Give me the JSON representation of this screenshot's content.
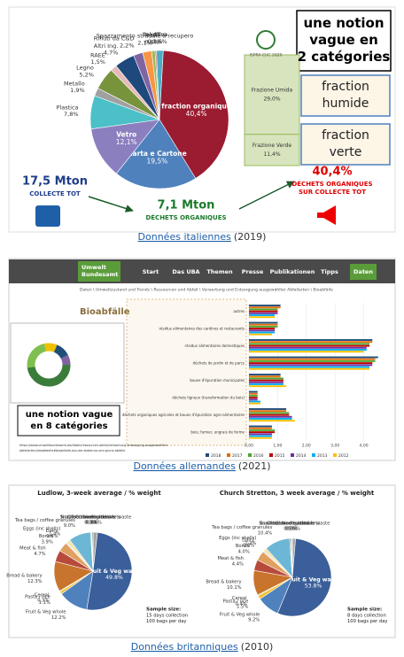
{
  "sections": [
    {
      "caption": {
        "link": "Données italiennes",
        "year": "(2019)"
      },
      "figure": {
        "type": "pie",
        "labels": [
          "Rifiuti da C&D",
          "Spazzamento stradale a recupero",
          "Tessili",
          "Selettiva",
          "Altro",
          "fraction organique",
          "Carta e Cartone",
          "Vetro",
          "Plastica",
          "Metallo",
          "Legno",
          "RAEE",
          "Altri Ing."
        ],
        "values": [
          2.2,
          2.1,
          0.8,
          0.3,
          1.6,
          40.4,
          19.5,
          12.1,
          7.8,
          1.9,
          5.2,
          1.5,
          4.7
        ],
        "value_labels": [
          "2,2%",
          "2,1%",
          "0,8%",
          "0,3%",
          "1,6%",
          "40,4%",
          "19,5%",
          "12,1%",
          "7,8%",
          "1,9%",
          "5,2%",
          "1,5%",
          "4,7%"
        ],
        "colors": [
          "#8064a2",
          "#f79646",
          "#9bbb59",
          "#c0504d",
          "#4bacc6",
          "#9b1b30",
          "#4f81bd",
          "#8c7fc0",
          "#4bc0c8",
          "#a0a0a0",
          "#77933c",
          "#e6b9b8",
          "#1f497d"
        ],
        "breakdown": [
          {
            "label": "Frazione Umida",
            "value": 29.0,
            "value_label": "29,0%"
          },
          {
            "label": "Frazione Verde",
            "value": 11.4,
            "value_label": "11,4%"
          }
        ],
        "logo": "ISPRA CUC 2020",
        "note": "une notion vague en 2 catégories",
        "tags": [
          "fraction humide",
          "fraction verte"
        ],
        "stats": [
          {
            "value": "17,5 Mton",
            "label": [
              "COLLECTE TOT"
            ]
          },
          {
            "value": "7,1 Mton",
            "label": [
              "DÉCHETS ORGANIQUES"
            ]
          },
          {
            "value": "40,4%",
            "label": [
              "DÉCHETS ORGANIQUES",
              "SUR COLLECTE TOT"
            ]
          }
        ]
      }
    },
    {
      "caption": {
        "link": "Données allemandes",
        "year": "(2021)"
      },
      "figure": {
        "type": "bar",
        "orientation": "horizontal",
        "site": {
          "logo": [
            "Umwelt",
            "Bundesamt"
          ],
          "nav": [
            "Start",
            "Das UBA",
            "Themen",
            "Presse",
            "Publikationen",
            "Tipps",
            "Daten"
          ],
          "breadcrumb": "Daten \\ Umweltzustand und Trends \\ Ressourcen und Abfall \\ Verwertung und Entsorgung ausgewählter Abfallarten \\ Bioabfälle"
        },
        "title": "Bioabfälle",
        "categories": [
          "autres",
          "résidus alimentaires des cantines et restaurants",
          "résidus alimentaires domestiques",
          "déchets de jardin et de parcs",
          "boues d'épuration municipales",
          "déchets ligneux (transformation du bois)",
          "déchets organiques agricoles et boues d'épuration agro-alimentaires",
          "bois; fumier, engrais de ferme"
        ],
        "series": [
          {
            "name": "2018",
            "color": "#1f4e79",
            "values": [
              1.1,
              1.0,
              4.3,
              4.5,
              1.1,
              0.3,
              1.3,
              0.8
            ]
          },
          {
            "name": "2017",
            "color": "#e46c0a",
            "values": [
              1.1,
              1.0,
              4.3,
              4.4,
              1.1,
              0.3,
              1.3,
              0.8
            ]
          },
          {
            "name": "2016",
            "color": "#4ea72e",
            "values": [
              1.0,
              1.0,
              4.2,
              4.4,
              1.2,
              0.3,
              1.4,
              0.9
            ]
          },
          {
            "name": "2015",
            "color": "#c00000",
            "values": [
              1.0,
              0.9,
              4.2,
              4.3,
              1.2,
              0.3,
              1.4,
              0.9
            ]
          },
          {
            "name": "2014",
            "color": "#7030a0",
            "values": [
              1.0,
              0.9,
              4.1,
              4.3,
              1.2,
              0.3,
              1.5,
              0.8
            ]
          },
          {
            "name": "2013",
            "color": "#00b0f0",
            "values": [
              0.9,
              0.9,
              4.1,
              4.2,
              1.2,
              0.4,
              1.5,
              0.8
            ]
          },
          {
            "name": "2012",
            "color": "#ffc000",
            "values": [
              0.9,
              0.8,
              4.0,
              4.2,
              1.3,
              0.4,
              1.6,
              0.8
            ]
          }
        ],
        "xlim": [
          0,
          4.6
        ],
        "xticks": [
          {
            "value": 0,
            "label": "0,00"
          },
          {
            "value": 1,
            "label": "1,00"
          },
          {
            "value": 2,
            "label": "2,00"
          },
          {
            "value": 3,
            "label": "3,00"
          },
          {
            "value": 4,
            "label": "4,00"
          }
        ],
        "note": "une notion vague en 8 catégories",
        "url": [
          "https://www.umweltbundesamt.de/daten/ressourcen-abfall/verwertung-entsorgung-ausgewaehlter-",
          "abfallarten/bioabfaelle#bioabfalle-aus-der-biotonne-und-grune-abfalle"
        ]
      }
    },
    {
      "caption": {
        "link": "Données britanniques",
        "year": "(2010)"
      },
      "figures": [
        {
          "type": "pie",
          "title": "Ludlow, 3-week average / % weight",
          "labels": [
            "Non-food biodegradable waste",
            "Fruit & Veg waste",
            "Fruit & Veg whole",
            "Pasta / rice",
            "Cereal",
            "Bread & bakery",
            "Meat & fish",
            "Bones",
            "Dairy",
            "Eggs (inc shells)",
            "Tea bags / coffee granules",
            "Snacks / sweets / desserts",
            "Other food materials",
            "Contamination"
          ],
          "values": [
            1.8,
            49.8,
            12.2,
            1.1,
            0.3,
            12.3,
            4.7,
            3.9,
            0.6,
            1.4,
            9.0,
            0.3,
            0.3,
            0.4
          ],
          "value_labels": [
            "1.8%",
            "49.8%",
            "12.2%",
            "1.1%",
            "0.3%",
            "12.3%",
            "4.7%",
            "3.9%",
            "0.6%",
            "1.4%",
            "9.0%",
            "0.3%",
            "0.3%",
            "0.4%"
          ],
          "colors": [
            "#a5a5a5",
            "#3a5f9a",
            "#4f81bd",
            "#f2c12e",
            "#9bbb59",
            "#c8742c",
            "#b84a3c",
            "#e0a060",
            "#d9d9d9",
            "#f4e3a1",
            "#6db7d6",
            "#7f7f7f",
            "#8064a2",
            "#2e7d5b"
          ],
          "sample": {
            "title": "Sample size:",
            "lines": [
              "15 days collection",
              "100 bags per day"
            ]
          }
        },
        {
          "type": "pie",
          "title": "Church Stretton, 3 week average / % weight",
          "labels": [
            "Non-food biodegradable waste",
            "Fruit & Veg waste",
            "Fruit & Veg whole",
            "Pasta / rice",
            "Cereal",
            "Bread & bakery",
            "Meat & fish",
            "Bones",
            "Dairy",
            "Eggs (inc shells)",
            "Tea bags / coffee granules",
            "Snacks / sweets / desserts",
            "Other food materials",
            "Contamination"
          ],
          "values": [
            1.3,
            53.8,
            9.2,
            1.5,
            0.4,
            10.1,
            4.4,
            4.0,
            0.6,
            1.2,
            10.4,
            0.5,
            0.3,
            0.3
          ],
          "value_labels": [
            "1.3%",
            "53.8%",
            "9.2%",
            "1.5%",
            "0.4%",
            "10.1%",
            "4.4%",
            "4.0%",
            "0.6%",
            "1.2%",
            "10.4%",
            "0.5%",
            "0.3%",
            "0.3%"
          ],
          "colors": [
            "#a5a5a5",
            "#3a5f9a",
            "#4f81bd",
            "#f2c12e",
            "#9bbb59",
            "#c8742c",
            "#b84a3c",
            "#e0a060",
            "#d9d9d9",
            "#f4e3a1",
            "#6db7d6",
            "#7f7f7f",
            "#8064a2",
            "#2e7d5b"
          ],
          "sample": {
            "title": "Sample size:",
            "lines": [
              "8 days collection",
              "100 bags per day"
            ]
          }
        }
      ]
    }
  ]
}
